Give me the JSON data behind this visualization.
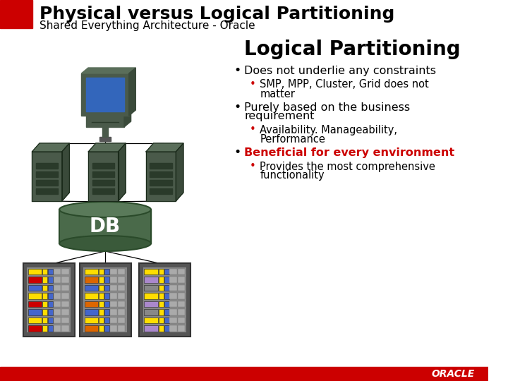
{
  "title": "Physical versus Logical Partitioning",
  "subtitle": "Shared Everything Architecture - Oracle",
  "title_fontsize": 18,
  "subtitle_fontsize": 11,
  "bg_color": "#ffffff",
  "title_bar_color": "#cc0000",
  "bottom_bar_color": "#cc0000",
  "section_title": "Logical Partitioning",
  "section_title_fontsize": 20,
  "bullet_fontsize": 11.5,
  "sub_bullet_fontsize": 10.5,
  "bullet3_color": "#cc0000",
  "db_text": "DB",
  "oracle_label": "ORACLE"
}
